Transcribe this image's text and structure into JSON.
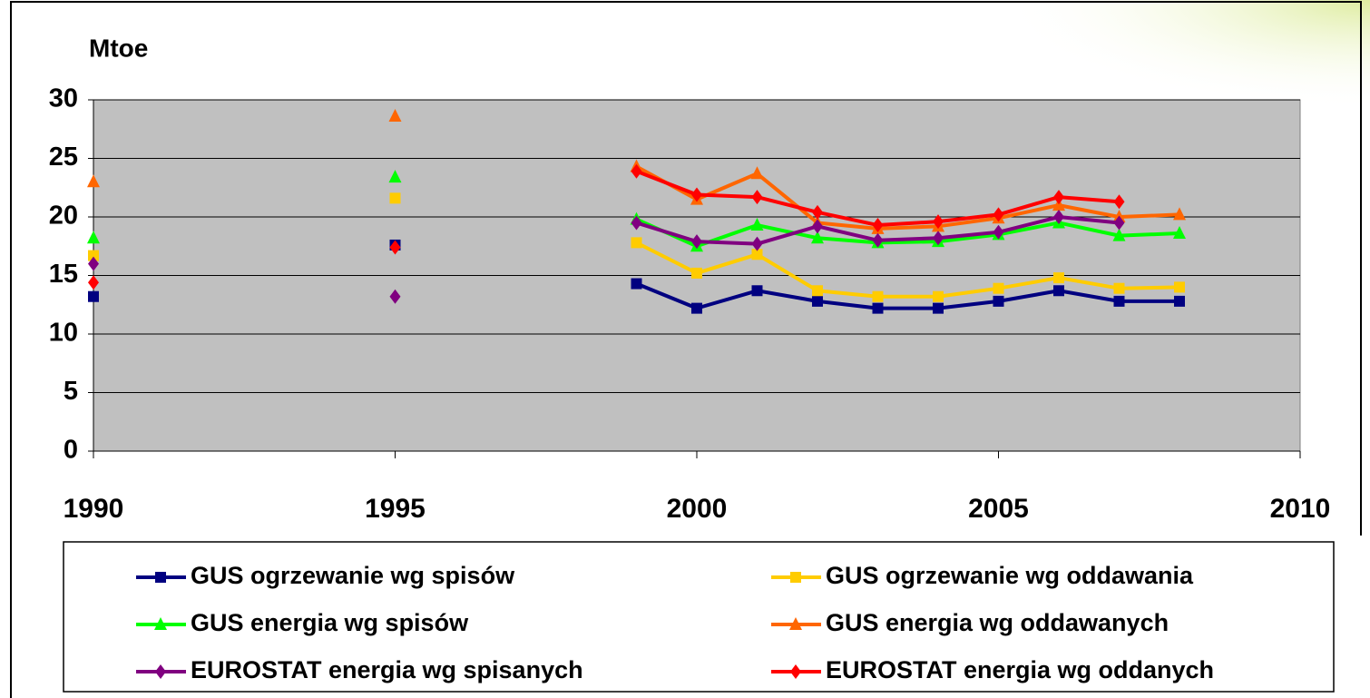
{
  "chart_data": {
    "type": "line",
    "ylabel": "Mtoe",
    "x": [
      1990,
      1991,
      1992,
      1993,
      1994,
      1995,
      1996,
      1997,
      1998,
      1999,
      2000,
      2001,
      2002,
      2003,
      2004,
      2005,
      2006,
      2007,
      2008
    ],
    "series": [
      {
        "name": "GUS ogrzewanie wg spisów",
        "color": "#000080",
        "marker": "square",
        "values": [
          13.2,
          null,
          null,
          null,
          null,
          17.6,
          null,
          null,
          null,
          14.3,
          12.2,
          13.7,
          12.8,
          12.2,
          12.2,
          12.8,
          13.7,
          12.8,
          12.8
        ]
      },
      {
        "name": "GUS ogrzewanie wg oddawania",
        "color": "#ffcc00",
        "marker": "square",
        "values": [
          16.7,
          null,
          null,
          null,
          null,
          21.6,
          null,
          null,
          null,
          17.8,
          15.2,
          16.8,
          13.7,
          13.2,
          13.2,
          13.9,
          14.8,
          13.9,
          14.0
        ]
      },
      {
        "name": "GUS energia wg spisów",
        "color": "#00ff00",
        "marker": "triangle",
        "values": [
          18.2,
          null,
          null,
          null,
          null,
          23.4,
          null,
          null,
          null,
          19.8,
          17.5,
          19.3,
          18.2,
          17.8,
          17.9,
          18.5,
          19.5,
          18.4,
          18.6
        ]
      },
      {
        "name": "GUS energia wg oddawanych",
        "color": "#ff6600",
        "marker": "triangle",
        "values": [
          23.0,
          null,
          null,
          null,
          null,
          28.6,
          null,
          null,
          null,
          24.3,
          21.5,
          23.7,
          19.5,
          19.0,
          19.2,
          19.9,
          21.0,
          20.0,
          20.2
        ]
      },
      {
        "name": "EUROSTAT energia wg spisanych",
        "color": "#800080",
        "marker": "diamond",
        "values": [
          16.0,
          null,
          null,
          null,
          null,
          13.2,
          null,
          null,
          null,
          19.5,
          17.9,
          17.7,
          19.2,
          18.0,
          18.2,
          18.7,
          20.0,
          19.5,
          null
        ]
      },
      {
        "name": "EUROSTAT energia wg oddanych",
        "color": "#ff0000",
        "marker": "diamond",
        "values": [
          14.4,
          null,
          null,
          null,
          null,
          17.4,
          null,
          null,
          null,
          23.9,
          21.9,
          21.7,
          20.4,
          19.3,
          19.6,
          20.2,
          21.7,
          21.3,
          null
        ]
      }
    ],
    "xlim": [
      1990,
      2010
    ],
    "xticks": [
      1990,
      1995,
      2000,
      2005,
      2010
    ],
    "ylim": [
      0,
      30
    ],
    "yticks": [
      0,
      5,
      10,
      15,
      20,
      25,
      30
    ],
    "grid": true,
    "legend": "bottom"
  }
}
